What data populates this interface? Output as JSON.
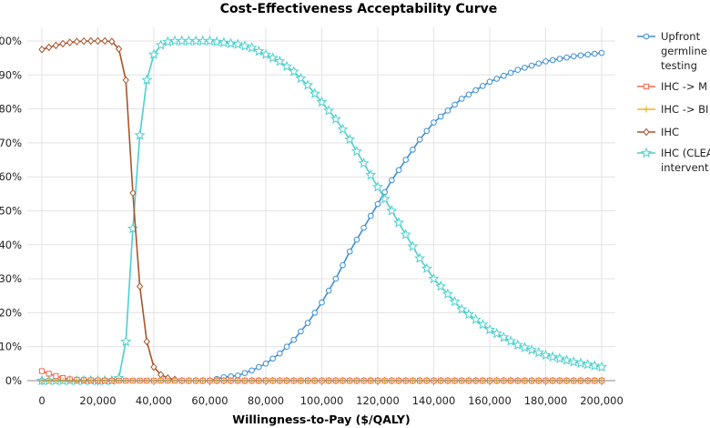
{
  "chart_data": {
    "type": "line",
    "title": "Cost-Effectiveness Acceptability Curve",
    "xlabel": "Willingness-to-Pay ($/QALY)",
    "ylabel": "",
    "xlim": [
      0,
      200000
    ],
    "ylim": [
      0,
      100
    ],
    "x_ticks": [
      "0",
      "20,000",
      "40,000",
      "60,000",
      "80,000",
      "100,000",
      "120,000",
      "140,000",
      "160,000",
      "180,000",
      "200,000"
    ],
    "y_ticks": [
      "0%",
      "10%",
      "20%",
      "30%",
      "40%",
      "50%",
      "60%",
      "70%",
      "80%",
      "90%",
      "100%"
    ],
    "grid": true,
    "legend_position": "right",
    "series": [
      {
        "name": "Upfront germline testing",
        "legend_lines": [
          "Upfront",
          "germline",
          "testing"
        ],
        "color": "#3d8fd6",
        "marker": "circle",
        "x": [
          0,
          60000,
          65000,
          70000,
          75000,
          80000,
          85000,
          90000,
          95000,
          100000,
          105000,
          110000,
          115000,
          120000,
          125000,
          130000,
          135000,
          140000,
          150000,
          160000,
          170000,
          180000,
          190000,
          200000
        ],
        "y": [
          0,
          0,
          1,
          1.5,
          3,
          5,
          8,
          12,
          17,
          23,
          30,
          38,
          45,
          52,
          59,
          65,
          71,
          76,
          83,
          88,
          91.5,
          94,
          95.5,
          96.5
        ]
      },
      {
        "name": "IHC -> M",
        "legend_lines": [
          "IHC -> M"
        ],
        "color": "#f26a4f",
        "marker": "square",
        "x": [
          0,
          2000,
          4000,
          6000,
          8000,
          10000,
          14000,
          18000,
          24000,
          30000,
          200000
        ],
        "y": [
          2.8,
          2.2,
          1.6,
          1.1,
          0.7,
          0.4,
          0.2,
          0.1,
          0,
          0,
          0
        ]
      },
      {
        "name": "IHC -> BI",
        "legend_lines": [
          "IHC -> BI"
        ],
        "color": "#e8b826",
        "marker": "cross",
        "x": [
          0,
          200000
        ],
        "y": [
          0,
          0
        ]
      },
      {
        "name": "IHC",
        "legend_lines": [
          "IHC"
        ],
        "color": "#a8552c",
        "marker": "diamond",
        "x": [
          0,
          4000,
          8000,
          12000,
          16000,
          20000,
          24000,
          27000,
          30000,
          32000,
          34000,
          36000,
          38000,
          40000,
          42000,
          44000,
          46000,
          50000,
          60000,
          200000
        ],
        "y": [
          97.5,
          98.5,
          99.3,
          99.8,
          100,
          100,
          100,
          99.5,
          88.5,
          61.5,
          36.5,
          19,
          9,
          4,
          2,
          1,
          0.5,
          0,
          0,
          0
        ]
      },
      {
        "name": "IHC (CLEA intervent",
        "legend_lines": [
          "IHC (CLEA",
          "intervent"
        ],
        "color": "#4ccfcf",
        "marker": "star",
        "x": [
          0,
          26000,
          28000,
          30000,
          32000,
          34000,
          36000,
          38000,
          40000,
          42000,
          44000,
          46000,
          48000,
          50000,
          60000,
          65000,
          70000,
          75000,
          80000,
          85000,
          90000,
          95000,
          100000,
          105000,
          110000,
          115000,
          120000,
          125000,
          130000,
          135000,
          140000,
          150000,
          160000,
          170000,
          180000,
          190000,
          200000
        ],
        "y": [
          0,
          0,
          1,
          11.5,
          38.5,
          63.5,
          81,
          91,
          96,
          98.5,
          99.5,
          100,
          100,
          100,
          100,
          99.5,
          99,
          98,
          96,
          94,
          91,
          87,
          82,
          77,
          71,
          64,
          57,
          50,
          43,
          36,
          30,
          21,
          15,
          10.5,
          7.5,
          5.5,
          4
        ]
      }
    ]
  }
}
